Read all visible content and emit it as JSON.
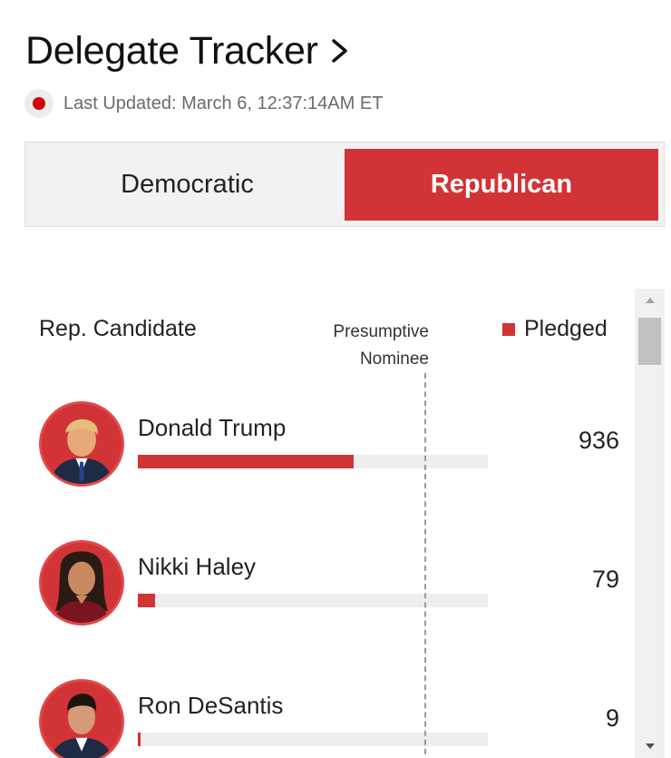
{
  "header": {
    "title": "Delegate Tracker",
    "last_updated": "Last Updated: March 6, 12:37:14AM ET"
  },
  "tabs": [
    {
      "label": "Democratic",
      "active": false
    },
    {
      "label": "Republican",
      "active": true
    }
  ],
  "table": {
    "candidate_header": "Rep. Candidate",
    "nominee_header_line1": "Presumptive",
    "nominee_header_line2": "Nominee",
    "pledged_header": "Pledged",
    "nominee_threshold_fraction": 0.82,
    "candidates": [
      {
        "name": "Donald Trump",
        "pledged": "936",
        "bar_fraction": 0.617
      },
      {
        "name": "Nikki Haley",
        "pledged": "79",
        "bar_fraction": 0.05
      },
      {
        "name": "Ron DeSantis",
        "pledged": "9",
        "bar_fraction": 0.007
      }
    ]
  },
  "colors": {
    "accent_red": "#d23336",
    "live_dot": "#d0020f",
    "bar_track": "#eeeeee"
  },
  "icons": {
    "title_chevron": "chevron-right-icon",
    "live_indicator": "live-dot-icon",
    "scroll_up": "triangle-up-icon",
    "scroll_down": "triangle-down-icon"
  }
}
